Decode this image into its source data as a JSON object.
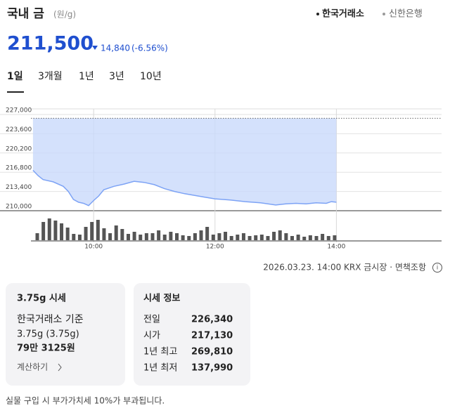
{
  "header": {
    "title": "국내 금",
    "unit": "(원/g)",
    "sources": [
      "한국거래소",
      "신한은행"
    ],
    "price": "211,500",
    "change": "14,840",
    "change_pct": "(-6.56%)"
  },
  "tabs": [
    "1일",
    "3개월",
    "1년",
    "3년",
    "10년"
  ],
  "chart_data": {
    "type": "line",
    "color": "#7da3f5",
    "fill": "#c9d9fb",
    "x": [
      540,
      545,
      550,
      560,
      570,
      575,
      580,
      585,
      590,
      595,
      600,
      605,
      610,
      620,
      630,
      640,
      650,
      660,
      670,
      680,
      690,
      700,
      710,
      720,
      735,
      750,
      765,
      780,
      790,
      800,
      810,
      820,
      830,
      835,
      840
    ],
    "values": [
      217130,
      216200,
      215500,
      215100,
      214300,
      213400,
      212000,
      211500,
      211300,
      210900,
      211800,
      212600,
      213700,
      214300,
      214700,
      215200,
      215000,
      214600,
      213900,
      213400,
      213000,
      212700,
      212400,
      212100,
      211900,
      211600,
      211400,
      211000,
      211200,
      211300,
      211200,
      211400,
      211300,
      211600,
      211500
    ],
    "reference": 226340,
    "xlim": [
      538,
      944
    ],
    "ylim": [
      210000,
      227000
    ],
    "yticks": [
      {
        "value": 227000,
        "label": "227,000"
      },
      {
        "value": 223600,
        "label": "223,600"
      },
      {
        "value": 220200,
        "label": "220,200"
      },
      {
        "value": 216800,
        "label": "216,800"
      },
      {
        "value": 213400,
        "label": "213,400"
      },
      {
        "value": 210000,
        "label": "210,000"
      }
    ],
    "xticks": [
      {
        "value": 600,
        "label": "10:00"
      },
      {
        "value": 720,
        "label": "12:00"
      },
      {
        "value": 840,
        "label": "14:00"
      }
    ],
    "volume": {
      "color": "#555555",
      "ylim": [
        0,
        35
      ],
      "x": [
        546,
        552,
        558,
        564,
        570,
        576,
        582,
        588,
        594,
        600,
        606,
        612,
        618,
        624,
        630,
        636,
        642,
        648,
        654,
        660,
        666,
        672,
        678,
        684,
        690,
        696,
        702,
        708,
        714,
        720,
        726,
        732,
        738,
        744,
        750,
        756,
        762,
        768,
        774,
        780,
        786,
        792,
        798,
        804,
        810,
        816,
        822,
        828,
        834,
        840
      ],
      "values": [
        10,
        26,
        31,
        28,
        24,
        18,
        9,
        8,
        19,
        26,
        29,
        17,
        10,
        21,
        16,
        9,
        12,
        8,
        10,
        10,
        14,
        8,
        12,
        10,
        7,
        6,
        10,
        14,
        19,
        8,
        10,
        12,
        6,
        8,
        10,
        6,
        7,
        8,
        6,
        12,
        14,
        10,
        6,
        8,
        5,
        7,
        6,
        9,
        6,
        7
      ]
    }
  },
  "source_line": "2026.03.23. 14:00 KRX 금시장 · 면책조항",
  "card1": {
    "title": "3.75g 시세",
    "basis": "한국거래소 기준",
    "weight": "3.75g (3.75g)",
    "price": "79만 3125원",
    "link": "계산하기"
  },
  "card2": {
    "title": "시세 정보",
    "rows": [
      [
        "전일",
        "226,340"
      ],
      [
        "시가",
        "217,130"
      ],
      [
        "1년 최고",
        "269,810"
      ],
      [
        "1년 최저",
        "137,990"
      ]
    ]
  },
  "footer": "실물 구입 시 부가가치세 10%가 부과됩니다."
}
